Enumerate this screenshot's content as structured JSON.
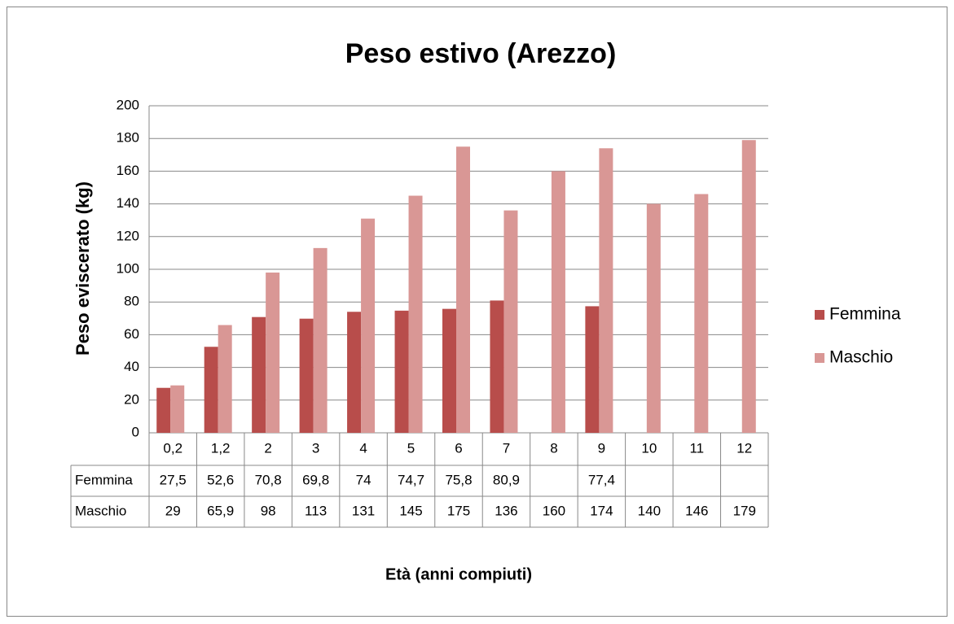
{
  "chart_data": {
    "type": "bar",
    "title": "Peso estivo (Arezzo)",
    "y_label": "Peso eviscerato (kg)",
    "x_label": "Età (anni compiuti)",
    "categories": [
      "0,2",
      "1,2",
      "2",
      "3",
      "4",
      "5",
      "6",
      "7",
      "8",
      "9",
      "10",
      "11",
      "12"
    ],
    "series": [
      {
        "name": "Femmina",
        "color": "#b84d4b",
        "values": [
          27.5,
          52.6,
          70.8,
          69.8,
          74,
          74.7,
          75.8,
          80.9,
          null,
          77.4,
          null,
          null,
          null
        ],
        "value_labels": [
          "27,5",
          "52,6",
          "70,8",
          "69,8",
          "74",
          "74,7",
          "75,8",
          "80,9",
          null,
          "77,4",
          null,
          null,
          null
        ]
      },
      {
        "name": "Maschio",
        "color": "#d99795",
        "values": [
          29,
          65.9,
          98,
          113,
          131,
          145,
          175,
          136,
          160,
          174,
          140,
          146,
          179
        ],
        "value_labels": [
          "29",
          "65,9",
          "98",
          "113",
          "131",
          "145",
          "175",
          "136",
          "160",
          "174",
          "140",
          "146",
          "179"
        ]
      }
    ],
    "ylim": [
      0,
      200
    ],
    "yticks": [
      0,
      20,
      40,
      60,
      80,
      100,
      120,
      140,
      160,
      180,
      200
    ],
    "grid": true,
    "legend": "right"
  }
}
